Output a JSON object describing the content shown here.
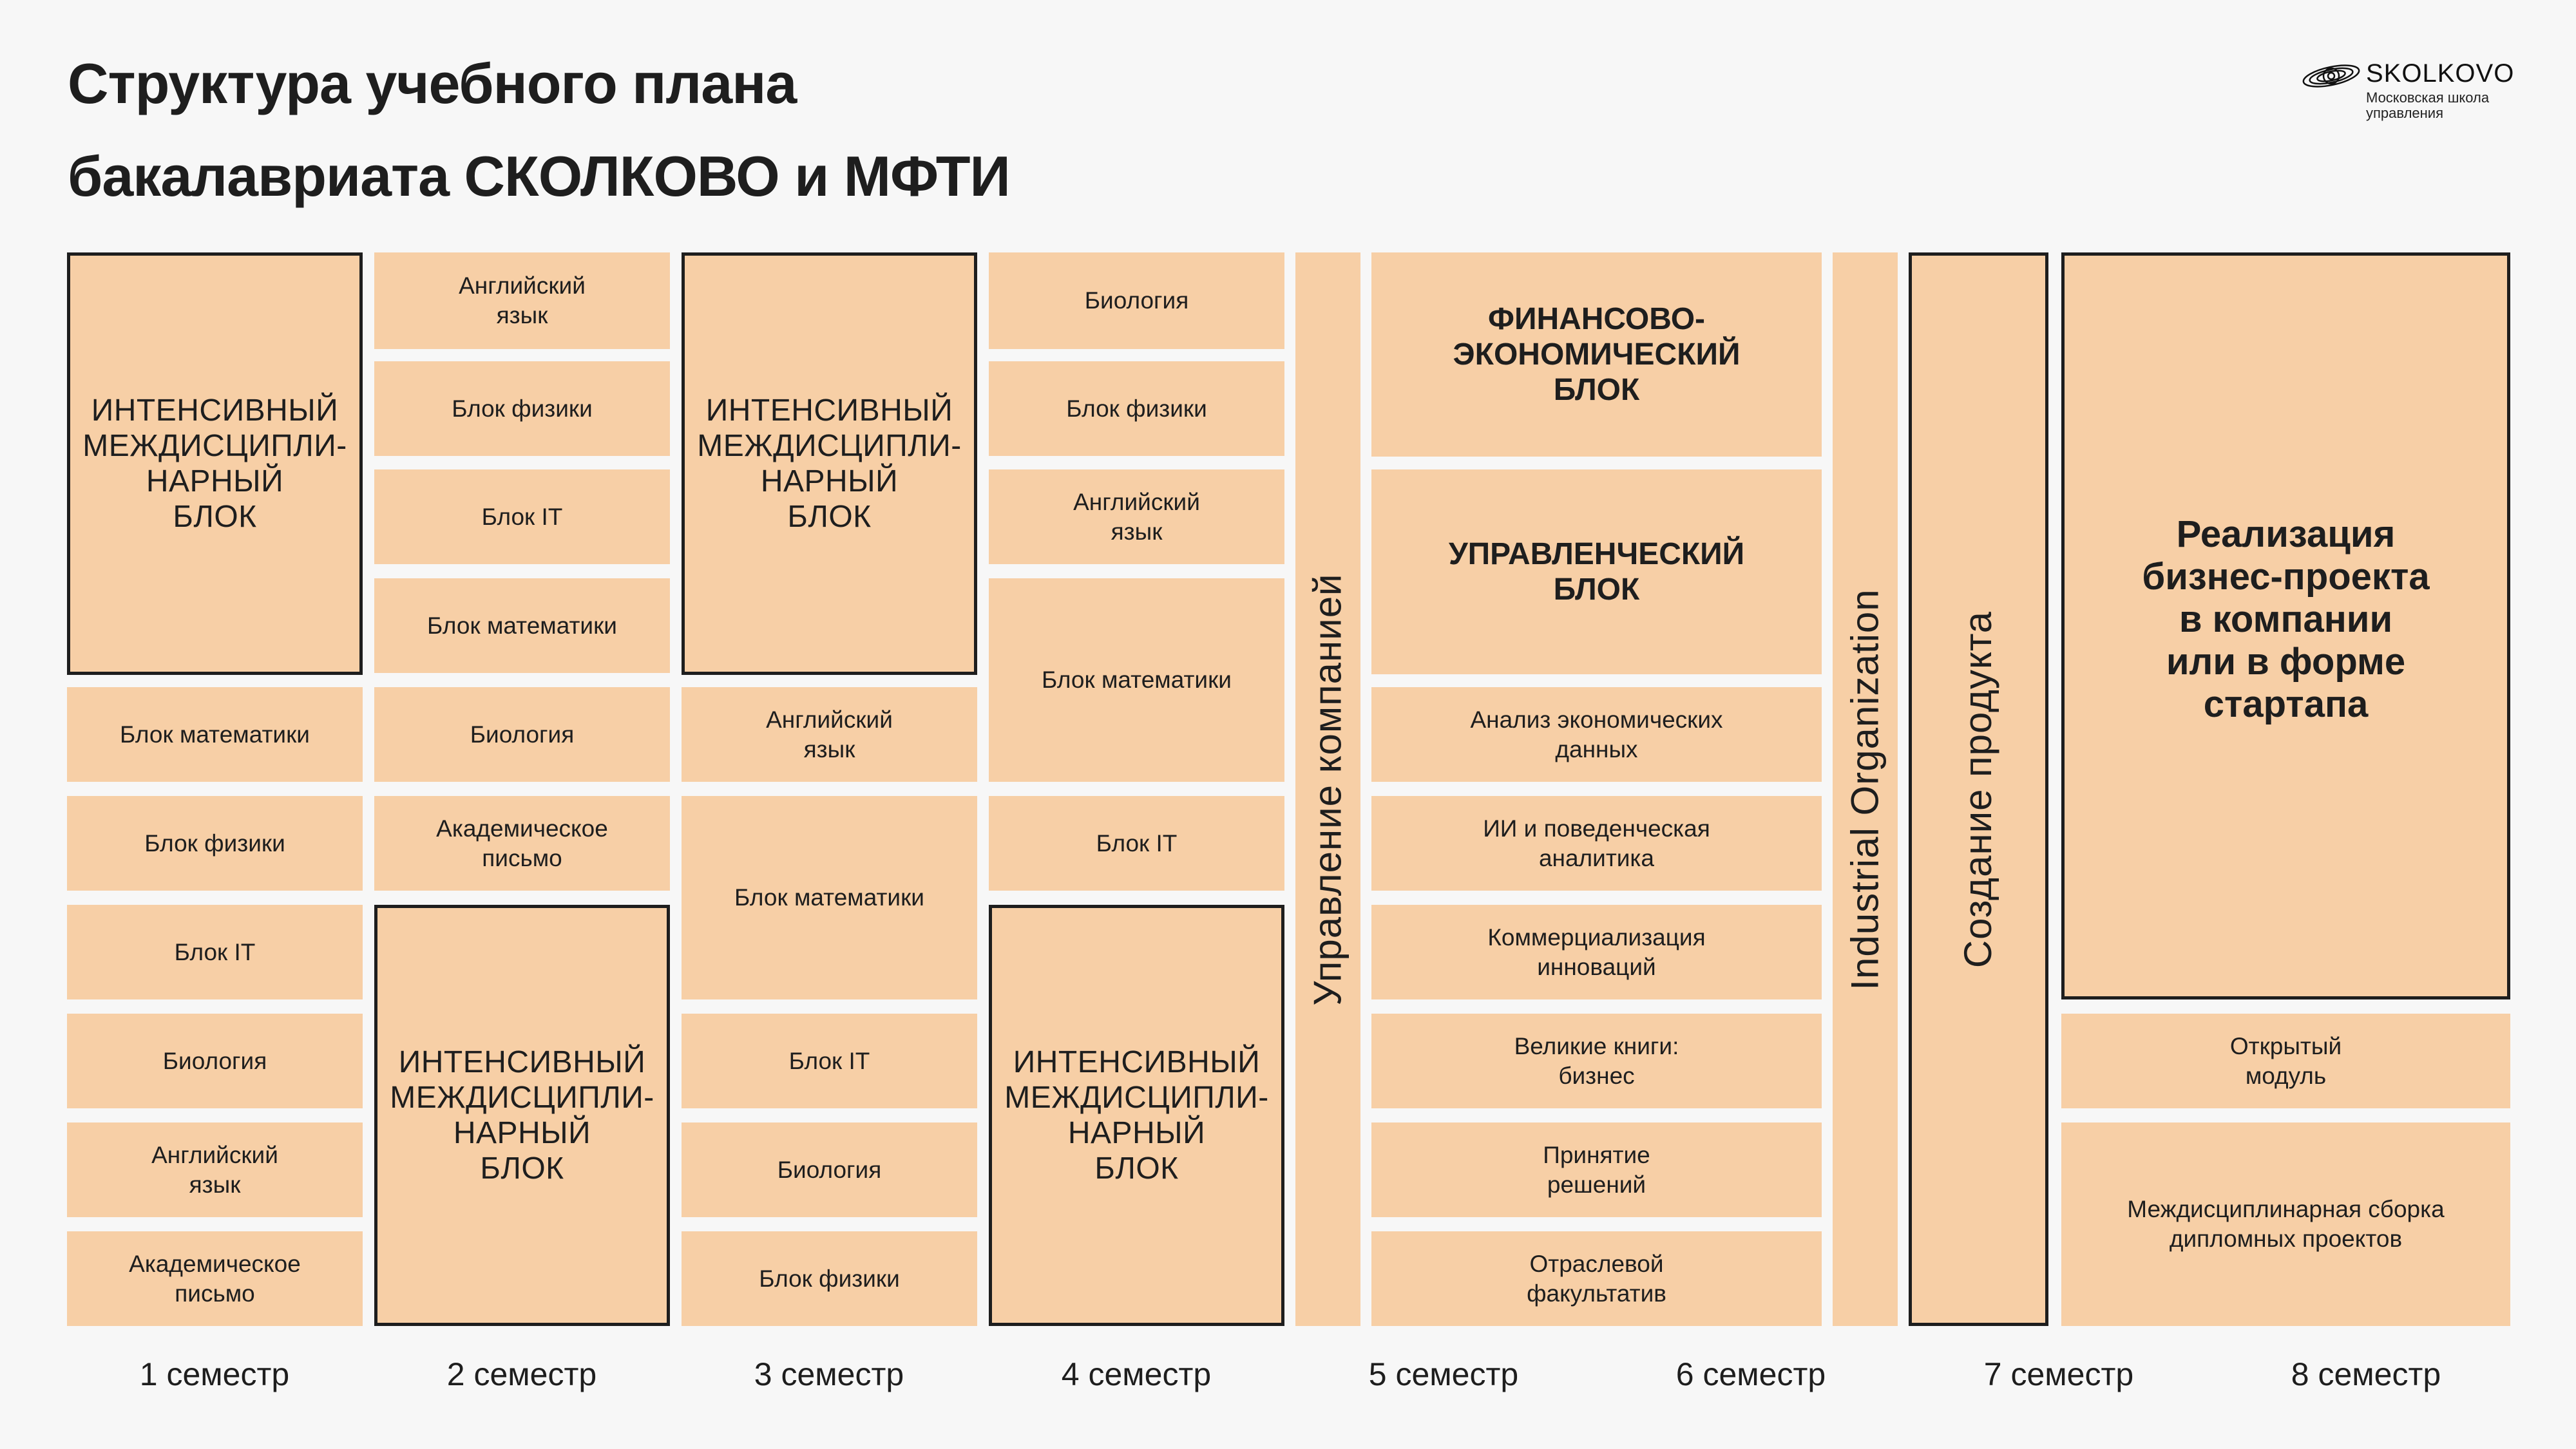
{
  "title": {
    "line1": "Структура учебного плана",
    "line2": "бакалавриата СКОЛКОВО и МФТИ"
  },
  "logo": {
    "icon": "skolkovo-logo-icon",
    "name": "SKOLKOVO",
    "sub1": "Московская школа",
    "sub2": "управления"
  },
  "colors": {
    "cell": "#f7cfa6",
    "border": "#1e1e1e",
    "background": "#f7f7f7"
  },
  "sem1": {
    "intensive": "ИНТЕНСИВНЫЙ\nМЕЖДИСЦИПЛИ-\nНАРНЫЙ\nБЛОК",
    "math": "Блок математики",
    "physics": "Блок физики",
    "it": "Блок IT",
    "biology": "Биология",
    "english": "Английский\nязык",
    "writing": "Академическое\nписьмо"
  },
  "sem2": {
    "english": "Английский\nязык",
    "physics": "Блок физики",
    "it": "Блок IT",
    "math": "Блок математики",
    "biology": "Биология",
    "writing": "Академическое\nписьмо",
    "intensive": "ИНТЕНСИВНЫЙ\nМЕЖДИСЦИПЛИ-\nНАРНЫЙ\nБЛОК"
  },
  "sem3": {
    "intensive": "ИНТЕНСИВНЫЙ\nМЕЖДИСЦИПЛИ-\nНАРНЫЙ\nБЛОК",
    "english": "Английский\nязык",
    "math": "Блок математики",
    "it": "Блок IT",
    "biology": "Биология",
    "physics": "Блок физики"
  },
  "sem4": {
    "biology": "Биология",
    "physics": "Блок физики",
    "english": "Английский\nязык",
    "math": "Блок математики",
    "it": "Блок IT",
    "intensive": "ИНТЕНСИВНЫЙ\nМЕЖДИСЦИПЛИ-\nНАРНЫЙ\nБЛОК"
  },
  "sem5": {
    "management": "Управление компанией"
  },
  "sem56": {
    "finance": "ФИНАНСОВО-\nЭКОНОМИЧЕСКИЙ\nБЛОК",
    "managerial": "УПРАВЛЕНЧЕСКИЙ\nБЛОК",
    "data": "Анализ экономических\nданных",
    "ai": "ИИ и поведенческая\nаналитика",
    "commercialization": "Коммерциализация\nинноваций",
    "books": "Великие книги:\nбизнес",
    "decisions": "Принятие\nрешений",
    "elective": "Отраслевой\nфакультатив"
  },
  "sem6": {
    "industrial": "Industrial Organization"
  },
  "sem7": {
    "product": "Создание продукта"
  },
  "sem78": {
    "project": "Реализация\nбизнес-проекта\nв компании\nили в форме\nстартапа",
    "open": "Открытый\nмодуль",
    "diploma": "Междисциплинарная сборка\nдипломных проектов"
  },
  "semesters": [
    "1 семестр",
    "2 семестр",
    "3 семестр",
    "4 семестр",
    "5 семестр",
    "6 семестр",
    "7 семестр",
    "8 семестр"
  ]
}
